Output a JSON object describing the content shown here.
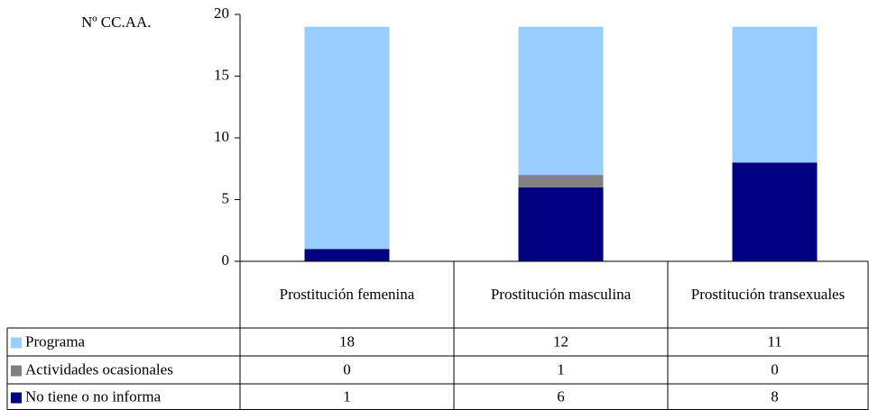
{
  "chart_data": {
    "type": "stacked_bar",
    "y_label": "Nº CC.AA.",
    "categories": [
      "Prostitución femenina",
      "Prostitución masculina",
      "Prostitución transexuales"
    ],
    "series": [
      {
        "name": "Programa",
        "color": "#99ccff",
        "values": [
          18,
          12,
          11
        ]
      },
      {
        "name": "Actividades ocasionales",
        "color": "#808080",
        "values": [
          0,
          1,
          0
        ]
      },
      {
        "name": "No tiene o no informa",
        "color": "#000080",
        "values": [
          1,
          6,
          8
        ]
      }
    ],
    "ylim": [
      0,
      20
    ],
    "yticks": [
      0,
      5,
      10,
      15,
      20
    ],
    "grid": false
  }
}
